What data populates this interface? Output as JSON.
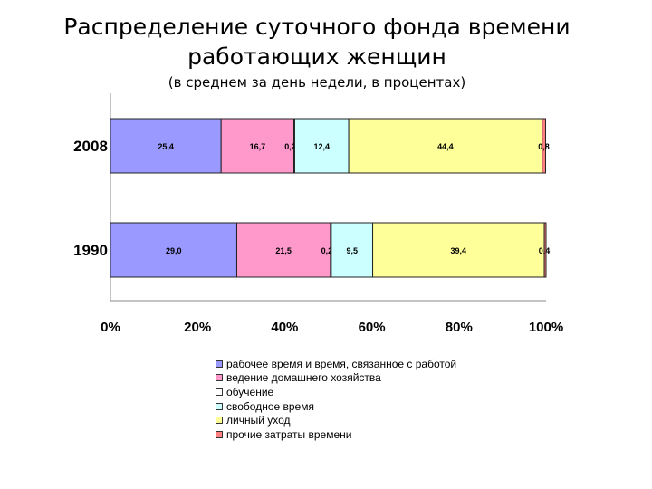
{
  "chart_data": {
    "type": "bar",
    "stacked": true,
    "orientation": "horizontal",
    "title": "Распределение суточного фонда времени работающих женщин",
    "title_lines": [
      "Распределение суточного фонда времени",
      "работающих женщин"
    ],
    "subtitle": "(в среднем за день недели, в процентах)",
    "categories": [
      "2008",
      "1990"
    ],
    "xlim": [
      0,
      100
    ],
    "xticks": [
      "0%",
      "20%",
      "40%",
      "60%",
      "80%",
      "100%"
    ],
    "grid": false,
    "legend_position": "bottom",
    "series": [
      {
        "name": "рабочее время и время, связанное с работой",
        "color": "#9999ff",
        "values": [
          25.4,
          29.0
        ],
        "labels": [
          "25,4",
          "29,0"
        ]
      },
      {
        "name": "ведение домашнего хозяйства",
        "color": "#ff99cc",
        "values": [
          16.7,
          21.5
        ],
        "labels": [
          "16,7",
          "21,5"
        ]
      },
      {
        "name": "обучение",
        "color": "#ffffff",
        "values": [
          0.2,
          0.2
        ],
        "labels": [
          "0,2",
          "0,2"
        ]
      },
      {
        "name": "свободное время",
        "color": "#ccffff",
        "values": [
          12.4,
          9.5
        ],
        "labels": [
          "12,4",
          "9,5"
        ]
      },
      {
        "name": "личный уход",
        "color": "#ffff99",
        "values": [
          44.4,
          39.4
        ],
        "labels": [
          "44,4",
          "39,4"
        ]
      },
      {
        "name": "прочие затраты времени",
        "color": "#ff8080",
        "values": [
          0.8,
          0.4
        ],
        "labels": [
          "0,8",
          "0,4"
        ]
      }
    ]
  }
}
